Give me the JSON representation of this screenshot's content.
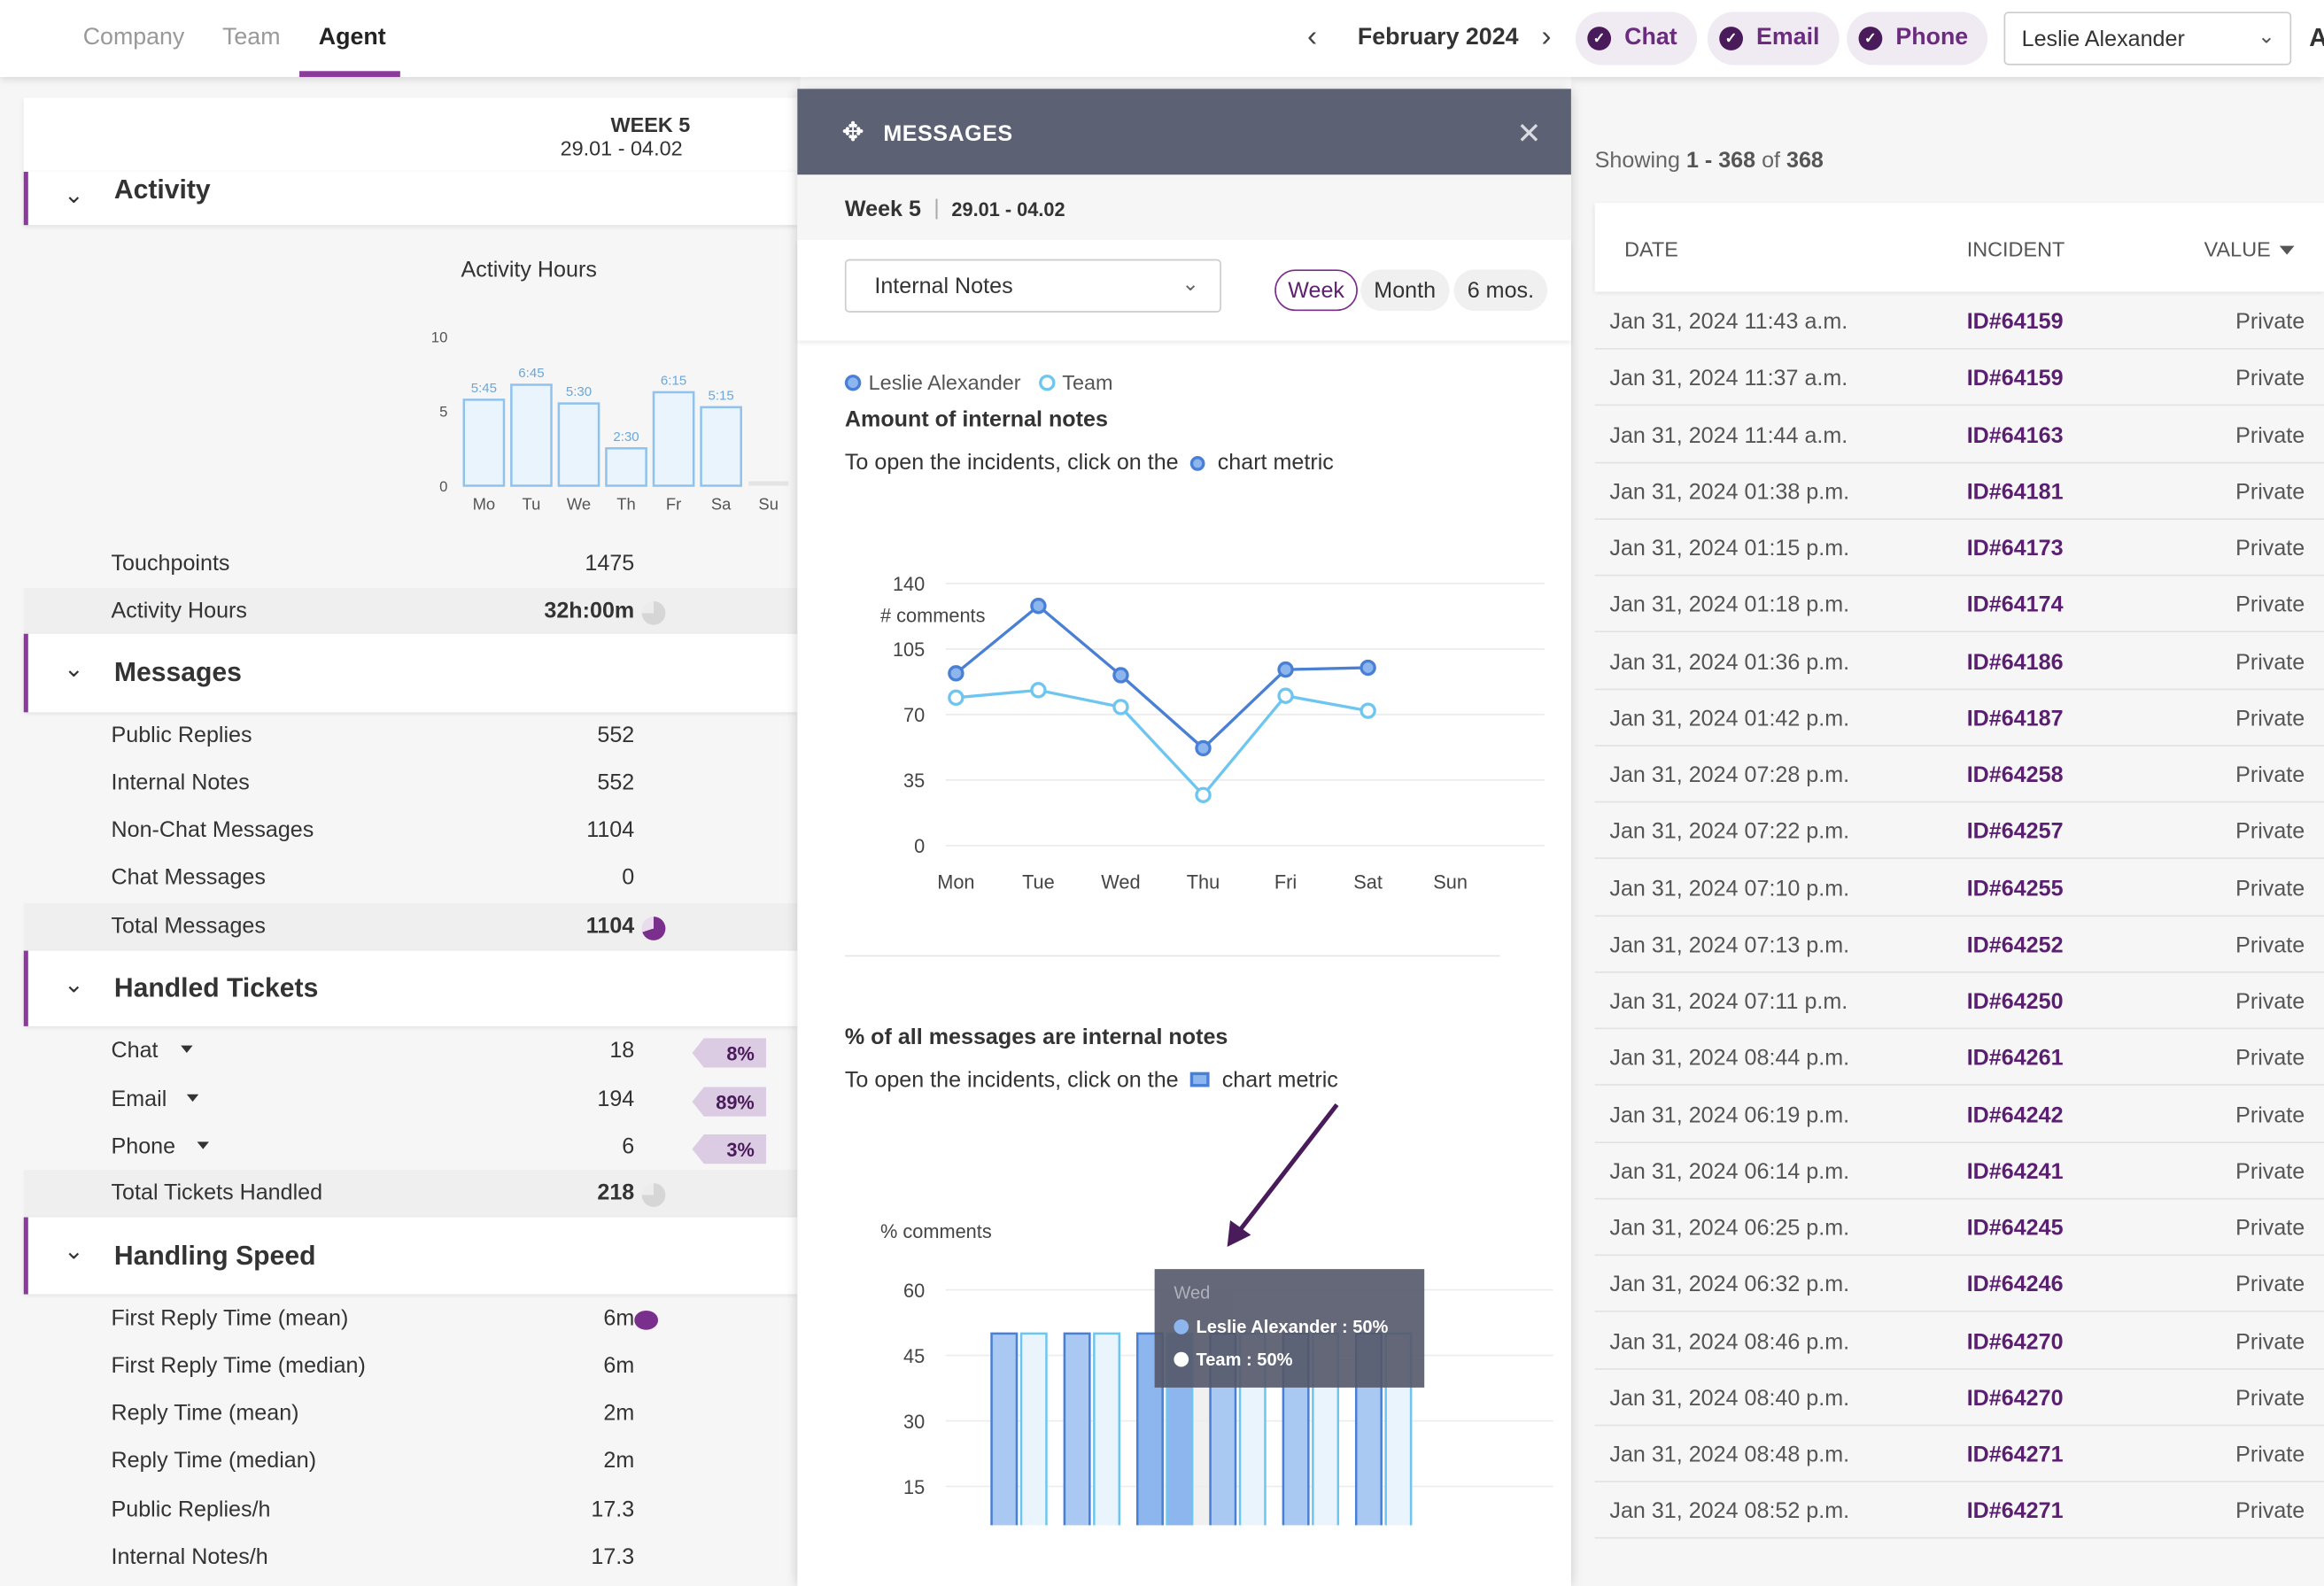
{
  "tabs": [
    "Company",
    "Team",
    "Agent"
  ],
  "active_tab": "Agent",
  "month": "February 2024",
  "channels": [
    "Chat",
    "Email",
    "Phone"
  ],
  "agent_select": "Leslie Alexander",
  "cutoff_char": "A",
  "week": {
    "label": "WEEK 5",
    "range": "29.01 - 04.02"
  },
  "activity": {
    "title": "Activity",
    "chart_data": {
      "type": "bar",
      "title": "Activity Hours",
      "categories": [
        "Mo",
        "Tu",
        "We",
        "Th",
        "Fr",
        "Sa",
        "Su"
      ],
      "values": [
        5.75,
        6.75,
        5.5,
        2.5,
        6.25,
        5.25,
        0
      ],
      "labels": [
        "5:45",
        "6:45",
        "5:30",
        "2:30",
        "6:15",
        "5:15",
        ""
      ],
      "yticks": [
        "10",
        "5",
        "0"
      ],
      "ylim": [
        0,
        10
      ]
    },
    "rows": [
      {
        "label": "Touchpoints",
        "value": "1475"
      },
      {
        "label": "Activity Hours",
        "value": "32h:00m"
      }
    ]
  },
  "messages": {
    "title": "Messages",
    "rows": [
      {
        "label": "Public Replies",
        "value": "552"
      },
      {
        "label": "Internal Notes",
        "value": "552"
      },
      {
        "label": "Non-Chat Messages",
        "value": "1104"
      },
      {
        "label": "Chat Messages",
        "value": "0"
      },
      {
        "label": "Total Messages",
        "value": "1104"
      }
    ]
  },
  "tickets": {
    "title": "Handled Tickets",
    "rows": [
      {
        "label": "Chat",
        "value": "18",
        "pct": "8%"
      },
      {
        "label": "Email",
        "value": "194",
        "pct": "89%"
      },
      {
        "label": "Phone",
        "value": "6",
        "pct": "3%"
      },
      {
        "label": "Total Tickets Handled",
        "value": "218"
      }
    ]
  },
  "speed": {
    "title": "Handling Speed",
    "rows": [
      {
        "label": "First Reply Time (mean)",
        "value": "6m"
      },
      {
        "label": "First Reply Time (median)",
        "value": "6m"
      },
      {
        "label": "Reply Time (mean)",
        "value": "2m"
      },
      {
        "label": "Reply Time (median)",
        "value": "2m"
      },
      {
        "label": "Public Replies/h",
        "value": "17.3"
      },
      {
        "label": "Internal Notes/h",
        "value": "17.3"
      }
    ]
  },
  "modal": {
    "title": "MESSAGES",
    "week_label": "Week 5",
    "week_sep": "|",
    "week_range": "29.01 - 04.02",
    "select": "Internal Notes",
    "periods": [
      "Week",
      "Month",
      "6 mos."
    ],
    "active_period": "Week",
    "legend": [
      "Leslie Alexander",
      "Team"
    ],
    "chart1_title": "Amount of internal notes",
    "chart1_hint_pre": "To open the incidents, click on the",
    "chart1_hint_post": "chart metric",
    "chart2_title": "% of all messages are internal notes",
    "chart2_hint_pre": "To open the incidents, click on the",
    "chart2_hint_post": "chart metric",
    "tooltip": {
      "title": "Wed",
      "rows": [
        "Leslie Alexander :  50%",
        "Team :  50%"
      ]
    }
  },
  "chart_data": [
    {
      "type": "line",
      "ylabel": "# comments",
      "categories": [
        "Mon",
        "Tue",
        "Wed",
        "Thu",
        "Fri",
        "Sat",
        "Sun"
      ],
      "yticks": [
        0,
        35,
        70,
        105,
        140
      ],
      "ylim": [
        0,
        140
      ],
      "series": [
        {
          "name": "Leslie Alexander",
          "values": [
            92,
            128,
            91,
            52,
            94,
            95,
            null
          ]
        },
        {
          "name": "Team",
          "values": [
            79,
            83,
            74,
            27,
            80,
            72,
            null
          ]
        }
      ]
    },
    {
      "type": "bar",
      "ylabel": "% comments",
      "categories": [
        "Mon",
        "Tue",
        "Wed",
        "Thu",
        "Fri",
        "Sat",
        "Sun"
      ],
      "yticks": [
        0,
        15,
        30,
        45,
        60
      ],
      "ylim": [
        0,
        60
      ],
      "series": [
        {
          "name": "Leslie Alexander",
          "values": [
            50,
            50,
            50,
            50,
            50,
            50,
            null
          ]
        },
        {
          "name": "Team",
          "values": [
            50,
            50,
            50,
            50,
            50,
            50,
            null
          ]
        }
      ]
    }
  ],
  "colors": {
    "accent": "#8b3a9c",
    "agent_line": "#4a7fd6",
    "team_line": "#6ec6f0",
    "modal_header": "#5c6173",
    "incident_id": "#5b1f72"
  },
  "table": {
    "showing_pre": "Showing",
    "showing_range": "1 - 368",
    "showing_of": "of",
    "showing_total": "368",
    "headers": [
      "DATE",
      "INCIDENT",
      "VALUE"
    ],
    "rows": [
      [
        "Jan 31, 2024 11:43 a.m.",
        "ID#64159",
        "Private"
      ],
      [
        "Jan 31, 2024 11:37 a.m.",
        "ID#64159",
        "Private"
      ],
      [
        "Jan 31, 2024 11:44 a.m.",
        "ID#64163",
        "Private"
      ],
      [
        "Jan 31, 2024 01:38 p.m.",
        "ID#64181",
        "Private"
      ],
      [
        "Jan 31, 2024 01:15 p.m.",
        "ID#64173",
        "Private"
      ],
      [
        "Jan 31, 2024 01:18 p.m.",
        "ID#64174",
        "Private"
      ],
      [
        "Jan 31, 2024 01:36 p.m.",
        "ID#64186",
        "Private"
      ],
      [
        "Jan 31, 2024 01:42 p.m.",
        "ID#64187",
        "Private"
      ],
      [
        "Jan 31, 2024 07:28 p.m.",
        "ID#64258",
        "Private"
      ],
      [
        "Jan 31, 2024 07:22 p.m.",
        "ID#64257",
        "Private"
      ],
      [
        "Jan 31, 2024 07:10 p.m.",
        "ID#64255",
        "Private"
      ],
      [
        "Jan 31, 2024 07:13 p.m.",
        "ID#64252",
        "Private"
      ],
      [
        "Jan 31, 2024 07:11 p.m.",
        "ID#64250",
        "Private"
      ],
      [
        "Jan 31, 2024 08:44 p.m.",
        "ID#64261",
        "Private"
      ],
      [
        "Jan 31, 2024 06:19 p.m.",
        "ID#64242",
        "Private"
      ],
      [
        "Jan 31, 2024 06:14 p.m.",
        "ID#64241",
        "Private"
      ],
      [
        "Jan 31, 2024 06:25 p.m.",
        "ID#64245",
        "Private"
      ],
      [
        "Jan 31, 2024 06:32 p.m.",
        "ID#64246",
        "Private"
      ],
      [
        "Jan 31, 2024 08:46 p.m.",
        "ID#64270",
        "Private"
      ],
      [
        "Jan 31, 2024 08:40 p.m.",
        "ID#64270",
        "Private"
      ],
      [
        "Jan 31, 2024 08:48 p.m.",
        "ID#64271",
        "Private"
      ],
      [
        "Jan 31, 2024 08:52 p.m.",
        "ID#64271",
        "Private"
      ]
    ]
  }
}
